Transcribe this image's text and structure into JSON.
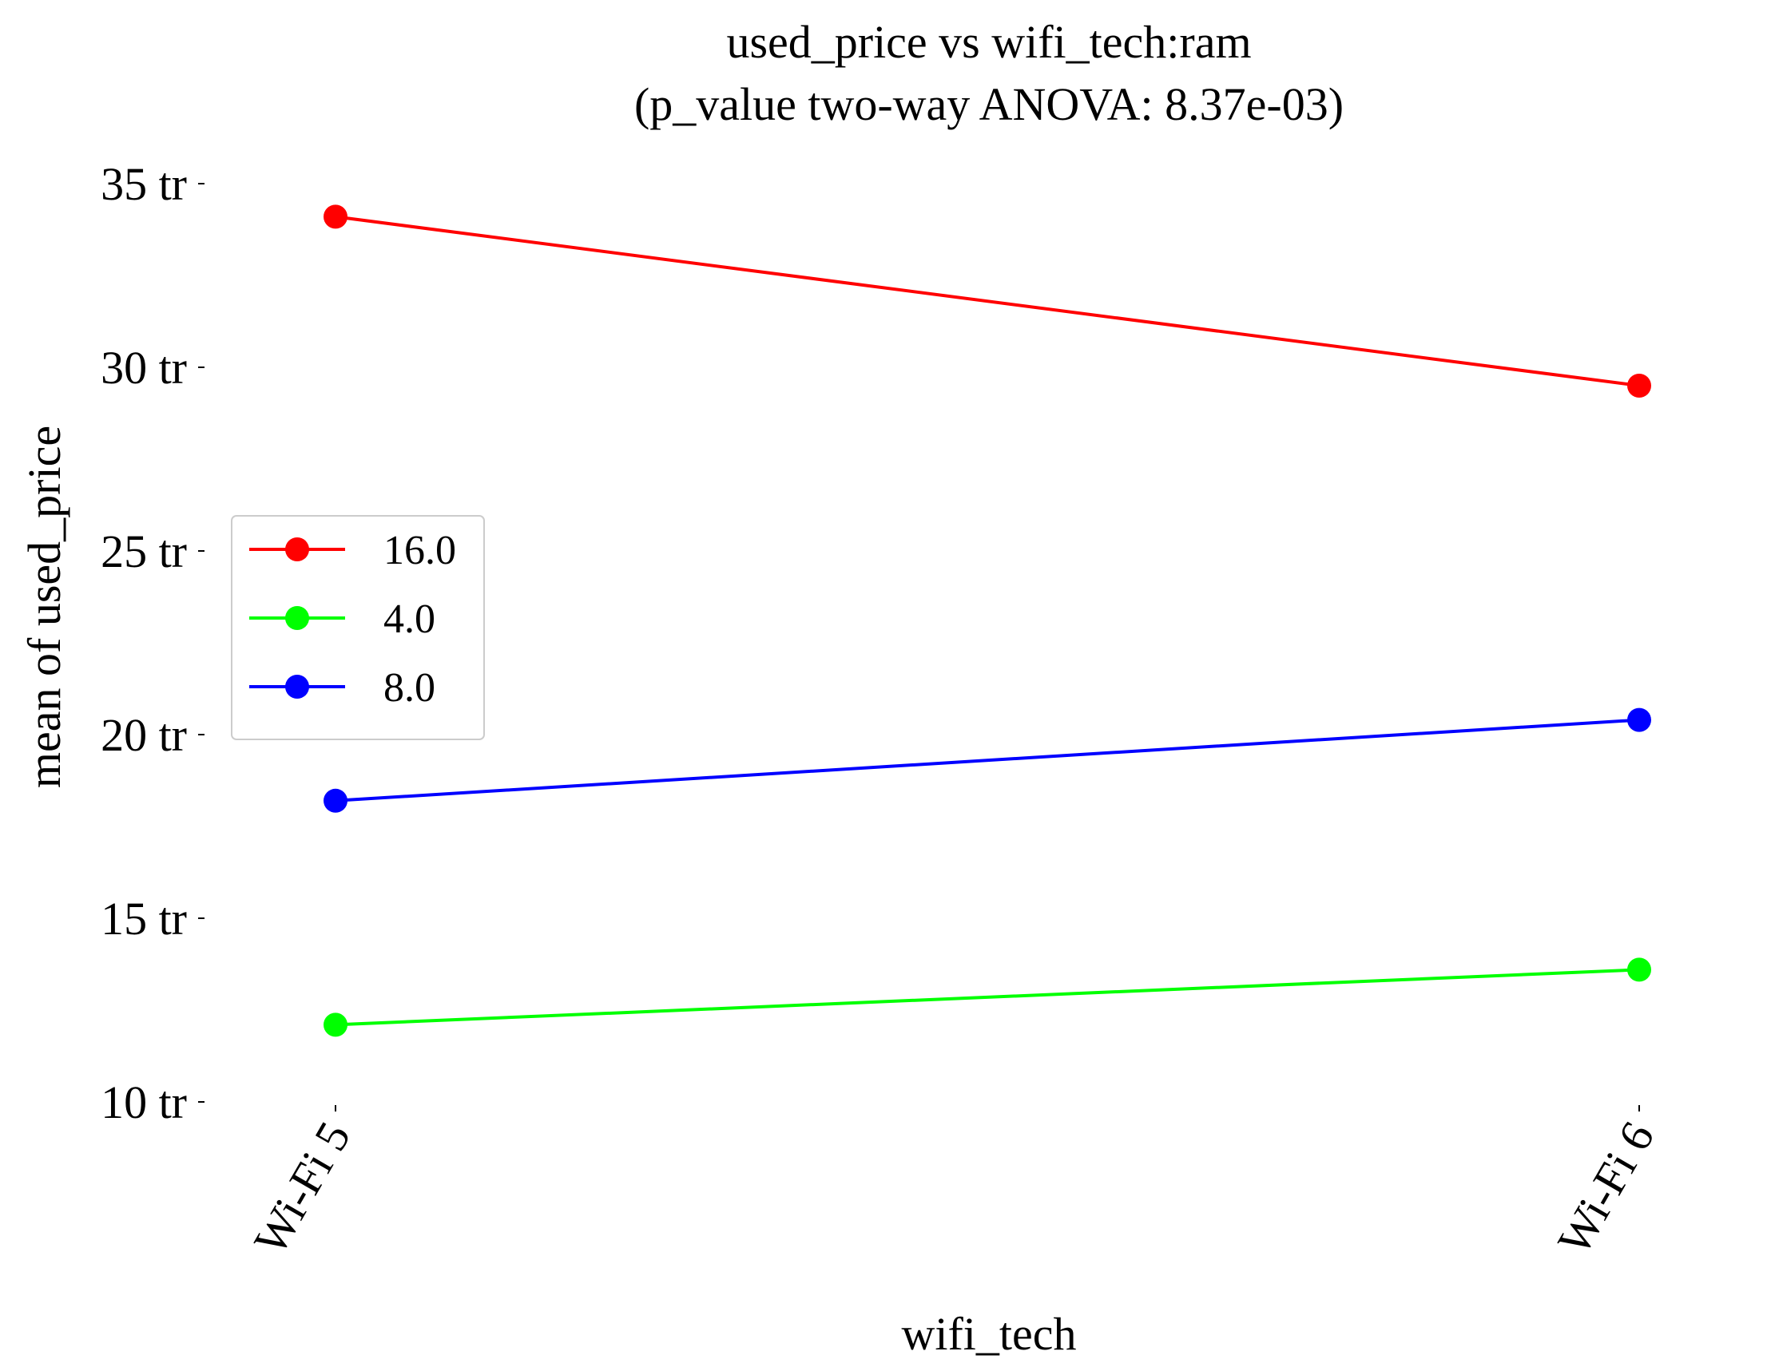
{
  "chart_data": {
    "type": "line",
    "title": "used_price vs wifi_tech:ram",
    "subtitle": "(p_value two-way ANOVA: 8.37e-03)",
    "xlabel": "wifi_tech",
    "ylabel": "mean of used_price",
    "categories": [
      "Wi-Fi 5",
      "Wi-Fi 6"
    ],
    "ylim": [
      10,
      35
    ],
    "yticks": [
      10,
      15,
      20,
      25,
      30,
      35
    ],
    "ytick_labels": [
      "10 tr",
      "15 tr",
      "20 tr",
      "25 tr",
      "30 tr",
      "35 tr"
    ],
    "grid": false,
    "legend_position": "center-left",
    "series": [
      {
        "name": "16.0",
        "color": "#ff0000",
        "values": [
          34.1,
          29.5
        ]
      },
      {
        "name": "4.0",
        "color": "#00ff00",
        "values": [
          12.1,
          13.6
        ]
      },
      {
        "name": "8.0",
        "color": "#0000ff",
        "values": [
          18.2,
          20.4
        ]
      }
    ]
  }
}
